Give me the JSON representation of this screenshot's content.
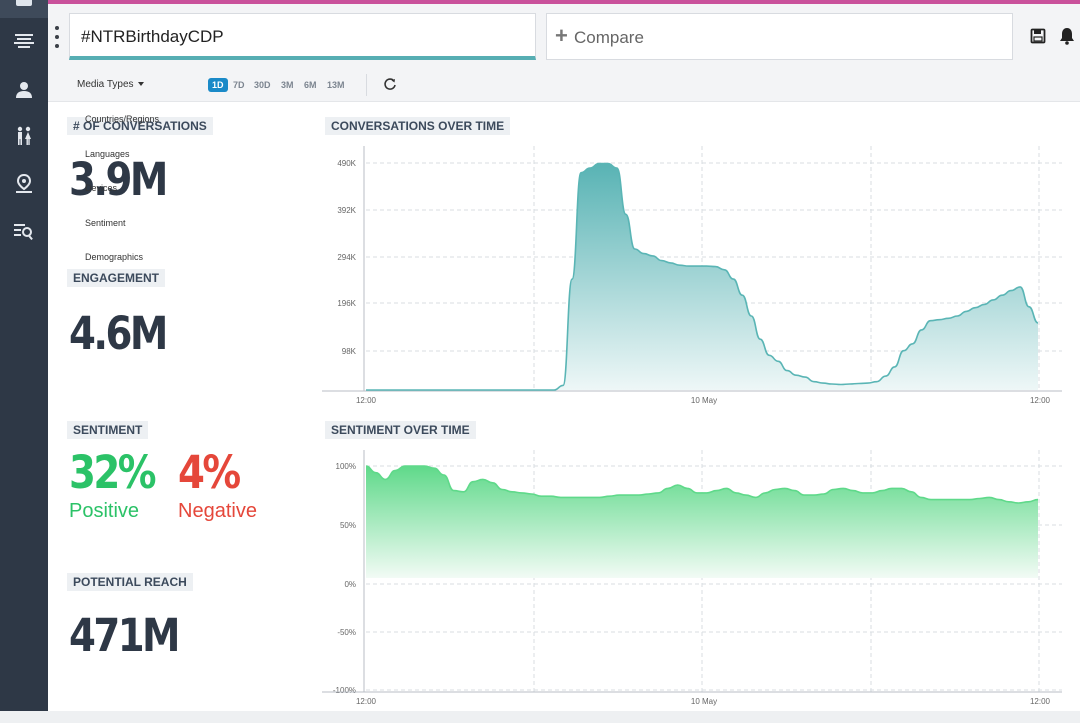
{
  "app": {
    "query": "#NTRBirthdayCDP",
    "compare_label": "Compare"
  },
  "sidebar": {
    "icons": [
      "dashboard-icon",
      "stream-icon",
      "influencer-icon",
      "demographics-icon",
      "location-icon",
      "search-list-icon"
    ]
  },
  "toolbar": {
    "media_types": "Media Types",
    "ranges": [
      "1D",
      "7D",
      "30D",
      "3M",
      "6M",
      "13M"
    ],
    "active_range": "1D"
  },
  "media_dropdown": {
    "items": [
      "Countries/Regions",
      "Languages",
      "Devices",
      "Sentiment",
      "Demographics"
    ]
  },
  "metrics": {
    "conversations": {
      "label": "# OF CONVERSATIONS",
      "value": "3.9M"
    },
    "engagement": {
      "label": "ENGAGEMENT",
      "value": "4.6M"
    },
    "sentiment": {
      "label": "SENTIMENT",
      "positive_value": "32%",
      "positive_label": "Positive",
      "negative_value": "4%",
      "negative_label": "Negative"
    },
    "reach": {
      "label": "POTENTIAL REACH",
      "value": "471M"
    }
  },
  "colors": {
    "sidebar": "#2e3846",
    "accent": "#1a8ac8",
    "conversations_line": "#5ab5b5",
    "sentiment_line": "#5fd98a",
    "positive": "#2bc267",
    "negative": "#e5473a"
  },
  "chart_data": [
    {
      "type": "area",
      "title": "CONVERSATIONS OVER TIME",
      "x_ticks": [
        "12:00",
        "10 May",
        "12:00"
      ],
      "y_ticks": [
        "490K",
        "392K",
        "294K",
        "196K",
        "98K"
      ],
      "ylim": [
        0,
        530000
      ],
      "grid": true,
      "values": [
        0,
        0,
        0,
        0,
        0,
        0,
        0,
        0,
        0,
        0,
        0,
        0,
        0,
        0,
        0,
        0,
        0,
        0,
        0,
        0,
        0,
        0,
        10000,
        240000,
        470000,
        480000,
        490000,
        490000,
        480000,
        380000,
        305000,
        295000,
        290000,
        280000,
        275000,
        270000,
        268000,
        268000,
        268000,
        267000,
        260000,
        240000,
        205000,
        160000,
        110000,
        75000,
        62000,
        42000,
        32000,
        28000,
        18000,
        15000,
        13000,
        12000,
        13000,
        14000,
        15000,
        18000,
        30000,
        50000,
        85000,
        100000,
        130000,
        150000,
        152000,
        155000,
        160000,
        170000,
        178000,
        185000,
        195000,
        205000,
        215000,
        223000,
        180000,
        145000
      ]
    },
    {
      "type": "area",
      "title": "SENTIMENT OVER TIME",
      "x_ticks": [
        "12:00",
        "10 May",
        "12:00"
      ],
      "y_ticks": [
        "100%",
        "50%",
        "0%",
        "-50%",
        "-100%"
      ],
      "ylim": [
        -100,
        100
      ],
      "grid": true,
      "values": [
        100,
        94,
        88,
        96,
        100,
        100,
        100,
        98,
        92,
        78,
        77,
        86,
        88,
        85,
        79,
        77,
        76,
        75,
        73,
        73,
        72,
        72,
        72,
        72,
        72,
        73,
        74,
        74,
        74,
        75,
        76,
        80,
        83,
        80,
        76,
        76,
        78,
        80,
        76,
        74,
        72,
        76,
        79,
        80,
        78,
        74,
        74,
        75,
        79,
        80,
        78,
        76,
        76,
        78,
        80,
        80,
        77,
        72,
        70,
        70,
        70,
        70,
        70,
        71,
        72,
        70,
        68,
        67,
        68,
        70
      ]
    }
  ]
}
